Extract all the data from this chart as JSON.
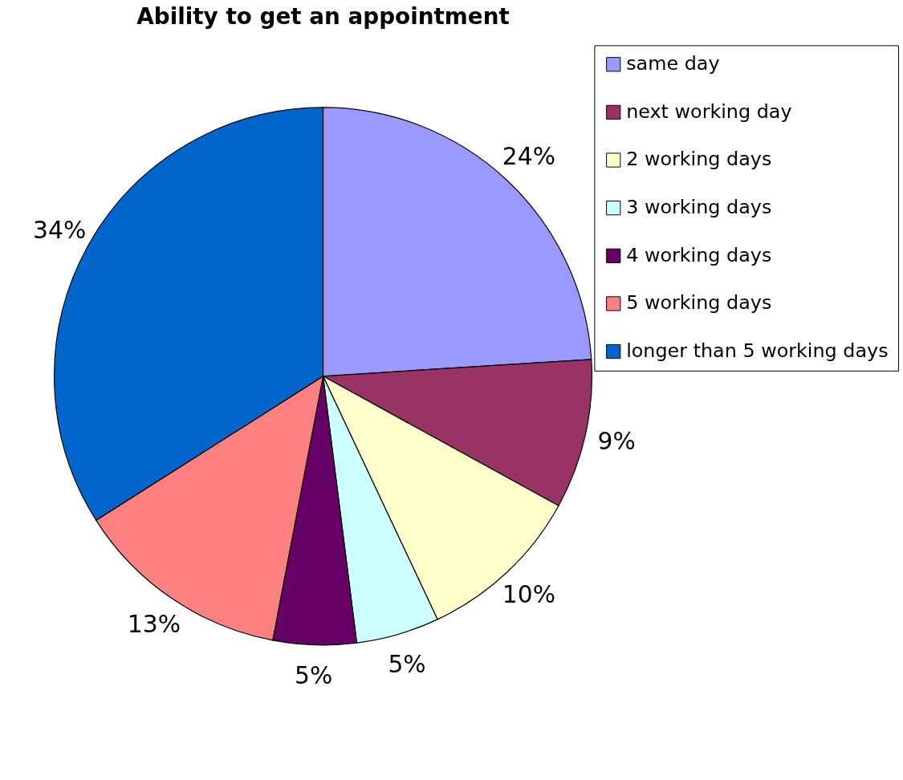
{
  "chart_data": {
    "type": "pie",
    "title": "Ability to get an appointment",
    "categories": [
      "same day",
      "next working day",
      "2 working days",
      "3 working days",
      "4 working days",
      "5 working days",
      "longer than 5 working days"
    ],
    "values": [
      24,
      9,
      10,
      5,
      5,
      13,
      34
    ],
    "colors": [
      "#9999ff",
      "#993366",
      "#ffffcc",
      "#ccffff",
      "#660066",
      "#ff8080",
      "#0066cc"
    ],
    "value_labels": [
      "24%",
      "9%",
      "10%",
      "5%",
      "5%",
      "13%",
      "34%"
    ],
    "legend": "right"
  }
}
